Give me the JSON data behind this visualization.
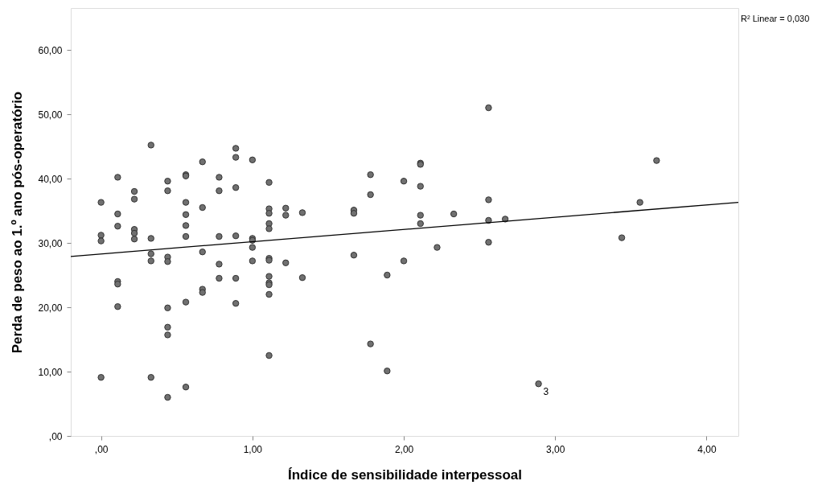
{
  "chart_data": {
    "type": "scatter",
    "xlabel": "Índice de sensibilidade interpessoal",
    "ylabel": "Perda de peso ao 1.º ano pós-operatório",
    "xlim": [
      -0.2,
      4.21
    ],
    "ylim": [
      0,
      66.5
    ],
    "xticks": [
      {
        "value": 0,
        "label": ",00"
      },
      {
        "value": 1,
        "label": "1,00"
      },
      {
        "value": 2,
        "label": "2,00"
      },
      {
        "value": 3,
        "label": "3,00"
      },
      {
        "value": 4,
        "label": "4,00"
      }
    ],
    "yticks": [
      {
        "value": 0,
        "label": ",00"
      },
      {
        "value": 10,
        "label": "10,00"
      },
      {
        "value": 20,
        "label": "20,00"
      },
      {
        "value": 30,
        "label": "30,00"
      },
      {
        "value": 40,
        "label": "40,00"
      },
      {
        "value": 50,
        "label": "50,00"
      },
      {
        "value": 60,
        "label": "60,00"
      }
    ],
    "grid": false,
    "annotations": [
      "R² Linear = 0,030",
      {
        "text": "3",
        "x": 2.89,
        "y": 8.1
      }
    ],
    "series": [
      {
        "marker": "circle",
        "color": "#707070",
        "x": [
          0,
          0,
          0,
          0,
          0.11,
          0.11,
          0.11,
          0.11,
          0.11,
          0.11,
          0.22,
          0.22,
          0.22,
          0.22,
          0.22,
          0.33,
          0.33,
          0.33,
          0.33,
          0.33,
          0.44,
          0.44,
          0.44,
          0.44,
          0.44,
          0.44,
          0.44,
          0.44,
          0.56,
          0.56,
          0.56,
          0.56,
          0.56,
          0.56,
          0.56,
          0.56,
          0.67,
          0.67,
          0.67,
          0.67,
          0.67,
          0.78,
          0.78,
          0.78,
          0.78,
          0.78,
          0.89,
          0.89,
          0.89,
          0.89,
          0.89,
          0.89,
          1.0,
          1.0,
          1.0,
          1.0,
          1.0,
          1.11,
          1.11,
          1.11,
          1.11,
          1.11,
          1.11,
          1.11,
          1.11,
          1.11,
          1.11,
          1.11,
          1.11,
          1.22,
          1.22,
          1.22,
          1.33,
          1.33,
          1.67,
          1.67,
          1.67,
          1.78,
          1.78,
          1.78,
          1.89,
          1.89,
          2.0,
          2.0,
          2.11,
          2.11,
          2.11,
          2.11,
          2.11,
          2.22,
          2.33,
          2.56,
          2.56,
          2.56,
          2.56,
          2.67,
          2.89,
          3.44,
          3.56,
          3.67
        ],
        "values": [
          36.3,
          31.2,
          30.3,
          9.1,
          40.2,
          34.5,
          32.6,
          24.0,
          23.6,
          20.1,
          38.0,
          36.8,
          32.1,
          31.5,
          30.6,
          45.2,
          30.7,
          28.3,
          27.2,
          9.1,
          39.6,
          38.1,
          27.8,
          27.1,
          19.9,
          16.9,
          15.7,
          6.0,
          40.6,
          40.4,
          36.3,
          34.4,
          32.7,
          31.0,
          20.8,
          7.6,
          42.6,
          35.5,
          28.6,
          22.8,
          22.3,
          40.2,
          38.1,
          31.0,
          26.7,
          24.5,
          44.7,
          43.3,
          38.6,
          31.1,
          24.5,
          20.6,
          42.9,
          30.7,
          30.4,
          29.3,
          27.2,
          39.4,
          35.3,
          34.6,
          33.0,
          32.2,
          27.6,
          27.3,
          24.8,
          23.8,
          23.5,
          22.0,
          12.5,
          35.4,
          34.3,
          26.9,
          34.7,
          24.6,
          35.1,
          34.6,
          28.1,
          40.6,
          37.5,
          14.3,
          25.0,
          10.1,
          39.6,
          27.2,
          42.4,
          42.2,
          38.8,
          34.3,
          33.0,
          29.3,
          34.5,
          51.0,
          36.7,
          33.5,
          30.1,
          33.7,
          8.1,
          30.8,
          36.3,
          42.8
        ]
      },
      {
        "type": "line",
        "color": "#000000",
        "x": [
          -0.2,
          4.21
        ],
        "values": [
          27.9,
          36.3
        ]
      }
    ]
  }
}
